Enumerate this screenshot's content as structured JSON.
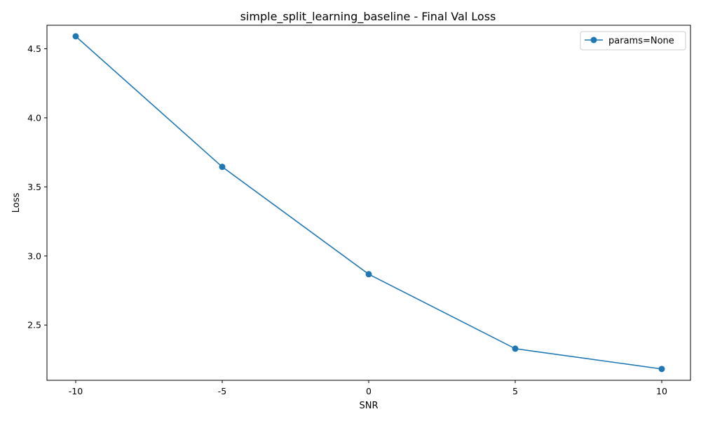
{
  "chart_data": {
    "type": "line",
    "title": "simple_split_learning_baseline - Final Val Loss",
    "xlabel": "SNR",
    "ylabel": "Loss",
    "categories": [
      "-10",
      "-5",
      "0",
      "5",
      "10"
    ],
    "series": [
      {
        "name": "params=None",
        "values": [
          4.59,
          3.645,
          2.868,
          2.329,
          2.182
        ],
        "color": "#1f77b4"
      }
    ],
    "ylim": [
      2.1,
      4.67
    ],
    "yticks": [
      2.5,
      3.0,
      3.5,
      4.0,
      4.5
    ],
    "ytick_labels": [
      "2.5",
      "3.0",
      "3.5",
      "4.0",
      "4.5"
    ],
    "grid": false,
    "legend": "top-right",
    "marker": "circle"
  }
}
